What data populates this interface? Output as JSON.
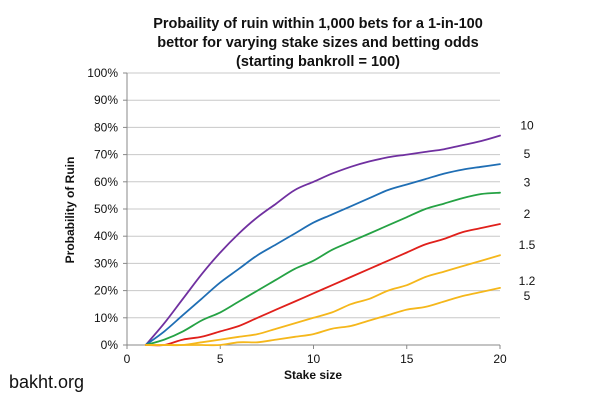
{
  "watermark": "bakht.org",
  "chart_data": {
    "type": "line",
    "title": [
      "Probaility of ruin within 1,000 bets for a 1-in-100",
      "bettor for varying stake sizes and betting odds",
      "(starting bankroll = 100)"
    ],
    "xlabel": "Stake size",
    "ylabel": "Probability of Ruin",
    "xlim": [
      0,
      20
    ],
    "ylim": [
      0,
      1
    ],
    "x_ticks": [
      0,
      5,
      10,
      15,
      20
    ],
    "y_ticks": [
      0,
      0.1,
      0.2,
      0.3,
      0.4,
      0.5,
      0.6,
      0.7,
      0.8,
      0.9,
      1.0
    ],
    "y_tick_labels": [
      "0%",
      "10%",
      "20%",
      "30%",
      "40%",
      "50%",
      "60%",
      "70%",
      "80%",
      "90%",
      "100%"
    ],
    "grid": true,
    "legend": "labels at right end of each line",
    "x": [
      1,
      2,
      3,
      4,
      5,
      6,
      7,
      8,
      9,
      10,
      11,
      12,
      13,
      14,
      15,
      16,
      17,
      18,
      19,
      20
    ],
    "series": [
      {
        "name": "10",
        "color": "#7030a0",
        "values": [
          0.0,
          0.08,
          0.17,
          0.26,
          0.34,
          0.41,
          0.47,
          0.52,
          0.57,
          0.6,
          0.63,
          0.655,
          0.675,
          0.69,
          0.7,
          0.71,
          0.72,
          0.735,
          0.75,
          0.77
        ]
      },
      {
        "name": "5",
        "color": "#1f6eb4",
        "values": [
          0.0,
          0.05,
          0.11,
          0.17,
          0.23,
          0.28,
          0.33,
          0.37,
          0.41,
          0.45,
          0.48,
          0.51,
          0.54,
          0.57,
          0.59,
          0.61,
          0.63,
          0.645,
          0.655,
          0.665
        ]
      },
      {
        "name": "3",
        "color": "#25a244",
        "values": [
          0.0,
          0.02,
          0.05,
          0.09,
          0.12,
          0.16,
          0.2,
          0.24,
          0.28,
          0.31,
          0.35,
          0.38,
          0.41,
          0.44,
          0.47,
          0.5,
          0.52,
          0.54,
          0.555,
          0.56
        ]
      },
      {
        "name": "2",
        "color": "#e0201b",
        "values": [
          0.0,
          0.0,
          0.02,
          0.03,
          0.05,
          0.07,
          0.1,
          0.13,
          0.16,
          0.19,
          0.22,
          0.25,
          0.28,
          0.31,
          0.34,
          0.37,
          0.39,
          0.415,
          0.43,
          0.445
        ]
      },
      {
        "name": "1.5",
        "color": "#f5b71b",
        "values": [
          0.0,
          0.0,
          0.0,
          0.01,
          0.02,
          0.03,
          0.04,
          0.06,
          0.08,
          0.1,
          0.12,
          0.15,
          0.17,
          0.2,
          0.22,
          0.25,
          0.27,
          0.29,
          0.31,
          0.33
        ]
      },
      {
        "name": "1.25",
        "label_lines": [
          "1.2",
          "5"
        ],
        "color": "#f5b71b",
        "values": [
          0.0,
          0.0,
          0.0,
          0.0,
          0.0,
          0.01,
          0.01,
          0.02,
          0.03,
          0.04,
          0.06,
          0.07,
          0.09,
          0.11,
          0.13,
          0.14,
          0.16,
          0.18,
          0.195,
          0.21
        ]
      }
    ]
  }
}
